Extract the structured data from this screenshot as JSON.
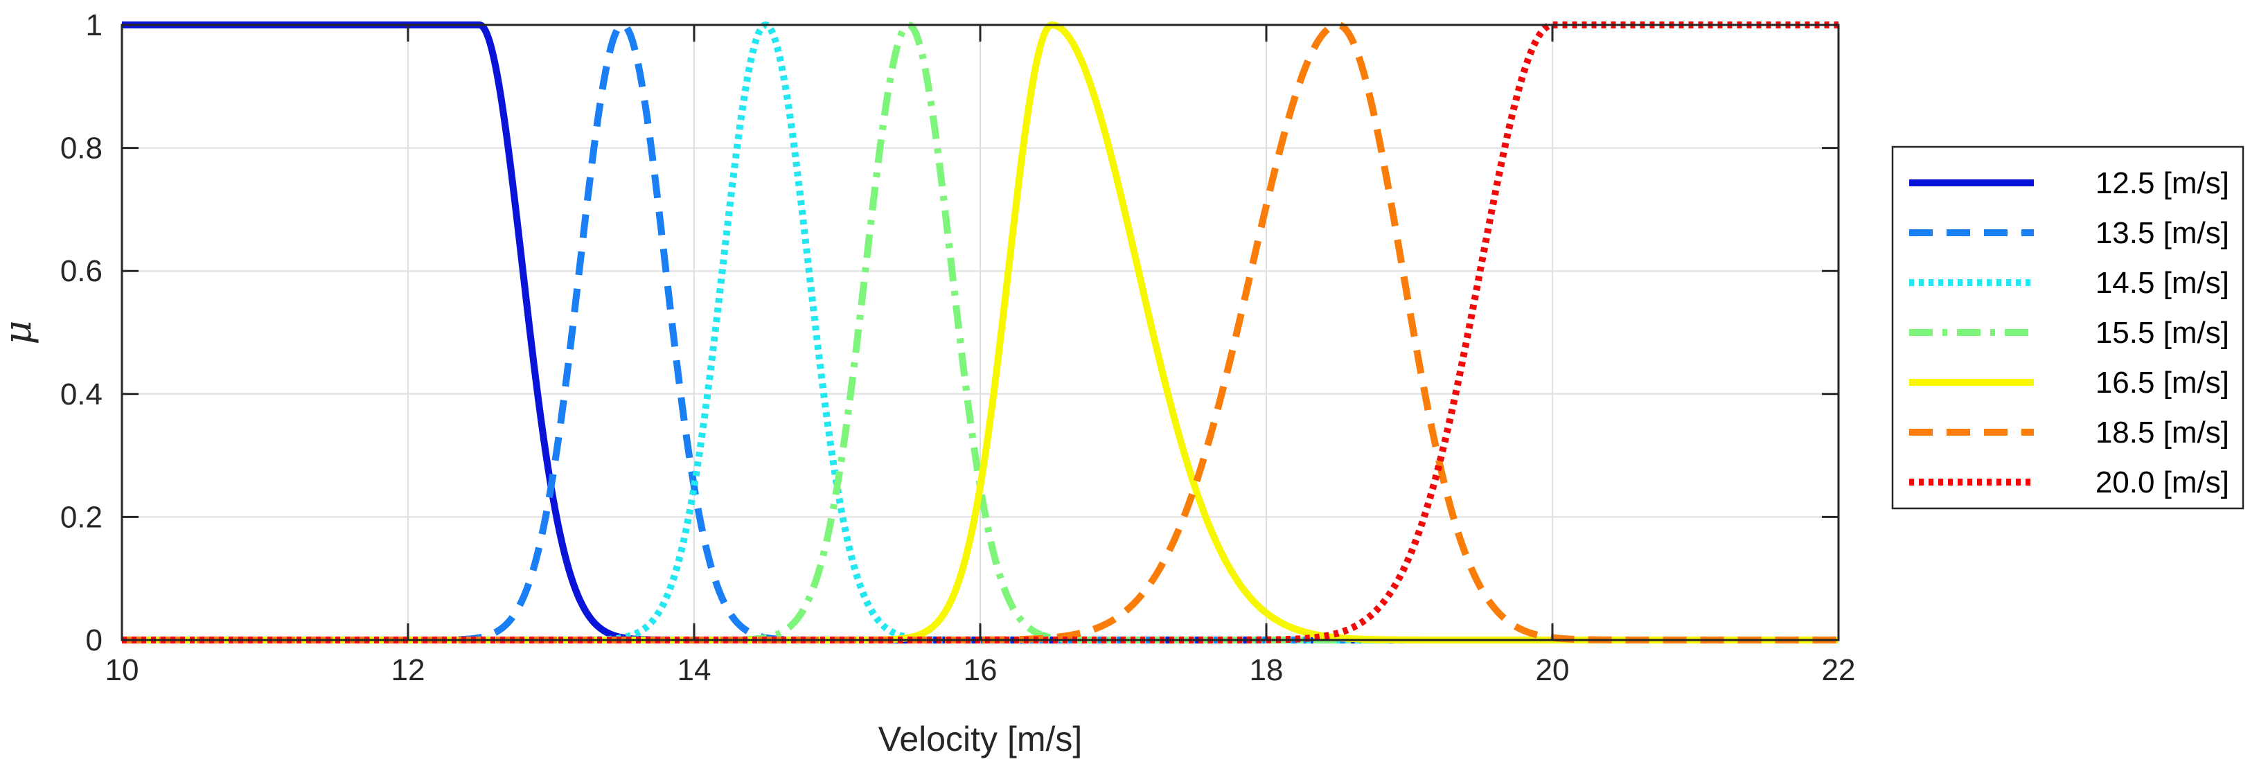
{
  "chart_data": {
    "type": "line",
    "title": "",
    "xlabel": "Velocity [m/s]",
    "ylabel": "μ",
    "xlim": [
      10,
      22
    ],
    "ylim": [
      0,
      1
    ],
    "x_ticks": [
      "10",
      "12",
      "14",
      "16",
      "18",
      "20",
      "22"
    ],
    "y_ticks": [
      "0",
      "0.2",
      "0.4",
      "0.6",
      "0.8",
      "1"
    ],
    "grid": true,
    "legend_position": "outside-right",
    "series": [
      {
        "name": "12.5 [m/s]",
        "color": "#0a14d8",
        "style": "solid",
        "shape": "z",
        "center": 12.5,
        "sigma": 0.3,
        "points": [
          [
            10,
            1
          ],
          [
            12.5,
            1
          ],
          [
            12.6,
            0.95
          ],
          [
            12.7,
            0.84
          ],
          [
            12.8,
            0.67
          ],
          [
            12.9,
            0.48
          ],
          [
            13.0,
            0.31
          ],
          [
            13.1,
            0.2
          ],
          [
            13.2,
            0.11
          ],
          [
            13.3,
            0.06
          ],
          [
            13.4,
            0.025
          ],
          [
            13.5,
            0.01
          ],
          [
            13.7,
            0
          ],
          [
            22,
            0
          ]
        ]
      },
      {
        "name": "13.5 [m/s]",
        "color": "#1a7ff5",
        "style": "dashed",
        "shape": "gauss",
        "center": 13.5,
        "sigma": 0.3,
        "points": [
          [
            10,
            0
          ],
          [
            12.3,
            0
          ],
          [
            12.6,
            0.04
          ],
          [
            12.9,
            0.14
          ],
          [
            13.1,
            0.41
          ],
          [
            13.3,
            0.8
          ],
          [
            13.5,
            1
          ],
          [
            13.6,
            0.95
          ],
          [
            13.7,
            0.8
          ],
          [
            13.9,
            0.41
          ],
          [
            14.1,
            0.14
          ],
          [
            14.3,
            0.03
          ],
          [
            14.5,
            0.01
          ],
          [
            14.8,
            0
          ],
          [
            22,
            0
          ]
        ]
      },
      {
        "name": "14.5 [m/s]",
        "color": "#22e6f0",
        "style": "dotted",
        "shape": "gauss",
        "center": 14.5,
        "sigma": 0.3,
        "points": [
          [
            10,
            0
          ],
          [
            13.5,
            0
          ],
          [
            13.7,
            0.03
          ],
          [
            13.9,
            0.14
          ],
          [
            14.1,
            0.41
          ],
          [
            14.3,
            0.8
          ],
          [
            14.5,
            1
          ],
          [
            14.7,
            0.8
          ],
          [
            14.9,
            0.41
          ],
          [
            15.1,
            0.14
          ],
          [
            15.3,
            0.03
          ],
          [
            15.5,
            0.01
          ],
          [
            15.8,
            0
          ],
          [
            22,
            0
          ]
        ]
      },
      {
        "name": "15.5 [m/s]",
        "color": "#7cf57a",
        "style": "dashdot",
        "shape": "gauss",
        "center": 15.5,
        "sigma": 0.3,
        "points": [
          [
            10,
            0
          ],
          [
            14.5,
            0
          ],
          [
            14.7,
            0.03
          ],
          [
            14.9,
            0.14
          ],
          [
            15.1,
            0.41
          ],
          [
            15.3,
            0.8
          ],
          [
            15.5,
            1
          ],
          [
            15.7,
            0.8
          ],
          [
            15.9,
            0.41
          ],
          [
            16.1,
            0.14
          ],
          [
            16.3,
            0.03
          ],
          [
            16.5,
            0.01
          ],
          [
            16.8,
            0
          ],
          [
            22,
            0
          ]
        ]
      },
      {
        "name": "16.5 [m/s]",
        "color": "#f7f700",
        "style": "solid",
        "shape": "asym-gauss",
        "center": 16.5,
        "sigma_left": 0.3,
        "sigma_right": 0.6,
        "points": [
          [
            10,
            0
          ],
          [
            15.5,
            0
          ],
          [
            15.7,
            0.03
          ],
          [
            15.9,
            0.14
          ],
          [
            16.1,
            0.41
          ],
          [
            16.3,
            0.8
          ],
          [
            16.5,
            1
          ],
          [
            16.7,
            0.95
          ],
          [
            16.9,
            0.8
          ],
          [
            17.1,
            0.61
          ],
          [
            17.3,
            0.41
          ],
          [
            17.5,
            0.25
          ],
          [
            17.7,
            0.14
          ],
          [
            17.9,
            0.07
          ],
          [
            18.1,
            0.03
          ],
          [
            18.3,
            0.01
          ],
          [
            18.8,
            0
          ],
          [
            22,
            0
          ]
        ]
      },
      {
        "name": "18.5 [m/s]",
        "color": "#fa7d0a",
        "style": "dashed",
        "shape": "asym-gauss",
        "center": 18.5,
        "sigma_left": 0.6,
        "sigma_right": 0.45,
        "points": [
          [
            10,
            0
          ],
          [
            16.2,
            0
          ],
          [
            16.5,
            0.01
          ],
          [
            16.9,
            0.03
          ],
          [
            17.3,
            0.14
          ],
          [
            17.6,
            0.32
          ],
          [
            17.9,
            0.61
          ],
          [
            18.2,
            0.88
          ],
          [
            18.5,
            1
          ],
          [
            18.7,
            0.91
          ],
          [
            18.9,
            0.67
          ],
          [
            19.1,
            0.41
          ],
          [
            19.3,
            0.21
          ],
          [
            19.5,
            0.09
          ],
          [
            19.7,
            0.03
          ],
          [
            20.0,
            0.01
          ],
          [
            20.4,
            0
          ],
          [
            22,
            0
          ]
        ]
      },
      {
        "name": "20.0 [m/s]",
        "color": "#f00a0a",
        "style": "dotted",
        "shape": "s",
        "center": 20.0,
        "sigma": 0.5,
        "points": [
          [
            10,
            0
          ],
          [
            18.0,
            0
          ],
          [
            18.3,
            0.01
          ],
          [
            18.5,
            0.02
          ],
          [
            18.7,
            0.05
          ],
          [
            18.9,
            0.11
          ],
          [
            19.1,
            0.2
          ],
          [
            19.3,
            0.34
          ],
          [
            19.5,
            0.53
          ],
          [
            19.7,
            0.74
          ],
          [
            19.9,
            0.96
          ],
          [
            20.0,
            1
          ],
          [
            22,
            1
          ]
        ]
      }
    ]
  }
}
